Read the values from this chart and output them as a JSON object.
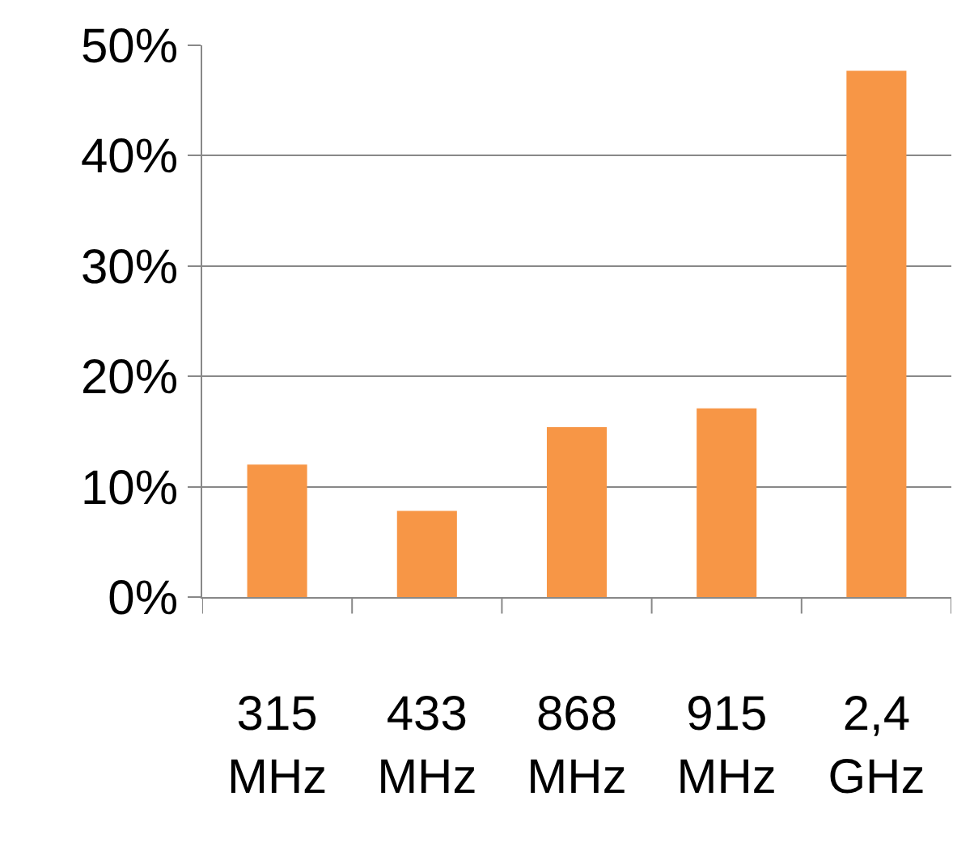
{
  "chart_data": {
    "type": "bar",
    "categories": [
      "315 MHz",
      "433 MHz",
      "868 MHz",
      "915 MHz",
      "2,4 GHz"
    ],
    "values": [
      12,
      7.8,
      15.4,
      17.1,
      47.7
    ],
    "color": "#f79646",
    "ylim": [
      0,
      50
    ],
    "yticks": [
      {
        "value": 0,
        "label": "0%"
      },
      {
        "value": 10,
        "label": "10%"
      },
      {
        "value": 20,
        "label": "20%"
      },
      {
        "value": 30,
        "label": "30%"
      },
      {
        "value": 40,
        "label": "40%"
      },
      {
        "value": 50,
        "label": "50%"
      }
    ],
    "grid": "y",
    "legend": false
  }
}
